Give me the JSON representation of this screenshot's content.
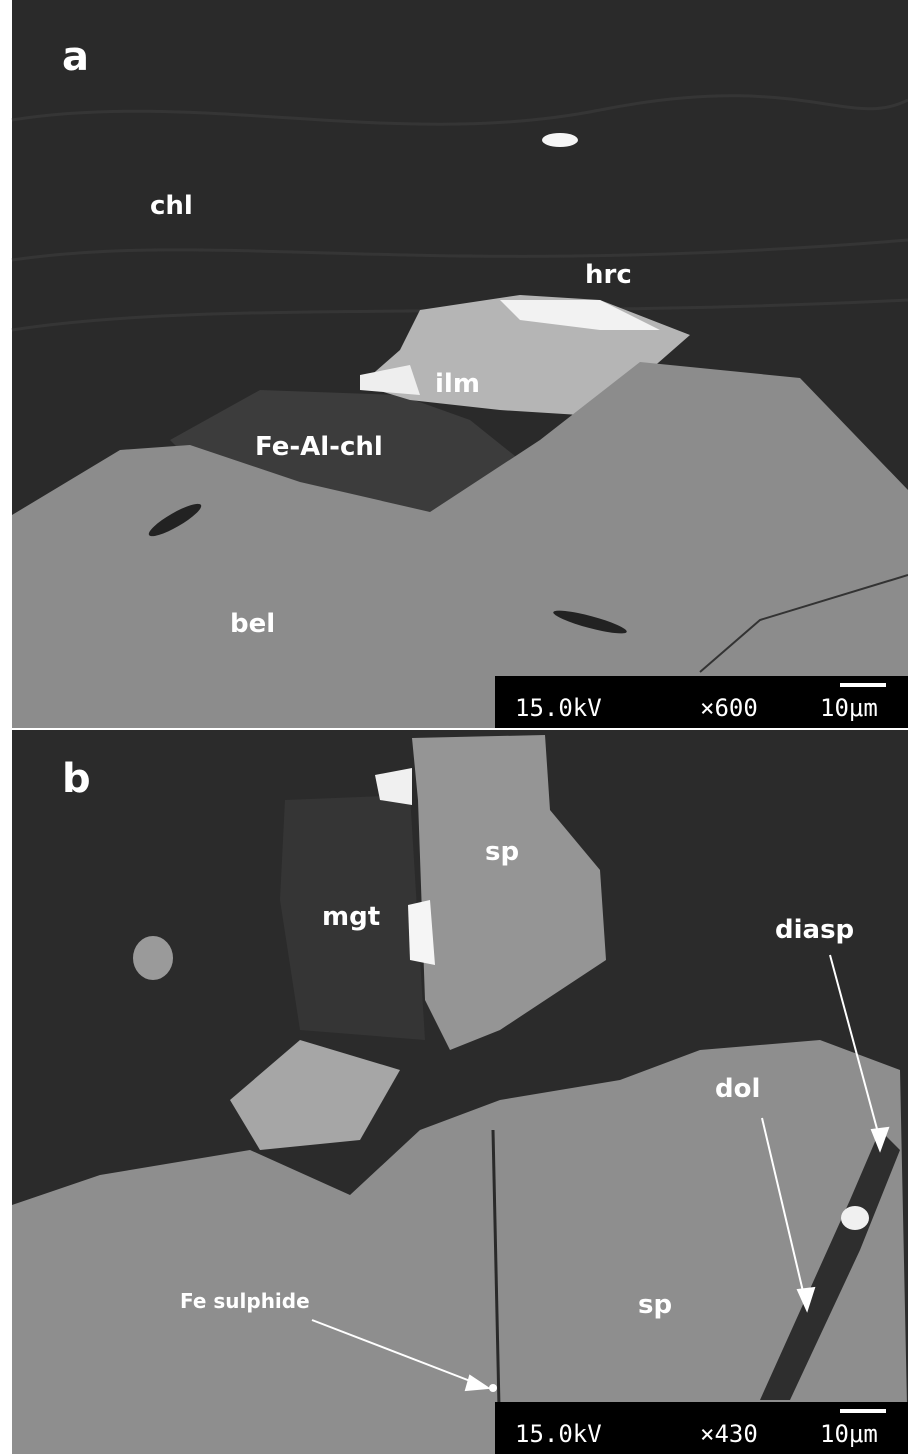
{
  "panels": [
    {
      "label": "a",
      "annotations": [
        "chl",
        "hrc",
        "ilm",
        "Fe-Al-chl",
        "bel"
      ],
      "scale_bar": {
        "voltage": "15.0kV",
        "magnification": "×600",
        "scale": "10μm"
      }
    },
    {
      "label": "b",
      "annotations": [
        "sp",
        "mgt",
        "diasp",
        "dol",
        "Fe sulphide",
        "sp"
      ],
      "scale_bar": {
        "voltage": "15.0kV",
        "magnification": "×430",
        "scale": "10μm"
      }
    }
  ]
}
